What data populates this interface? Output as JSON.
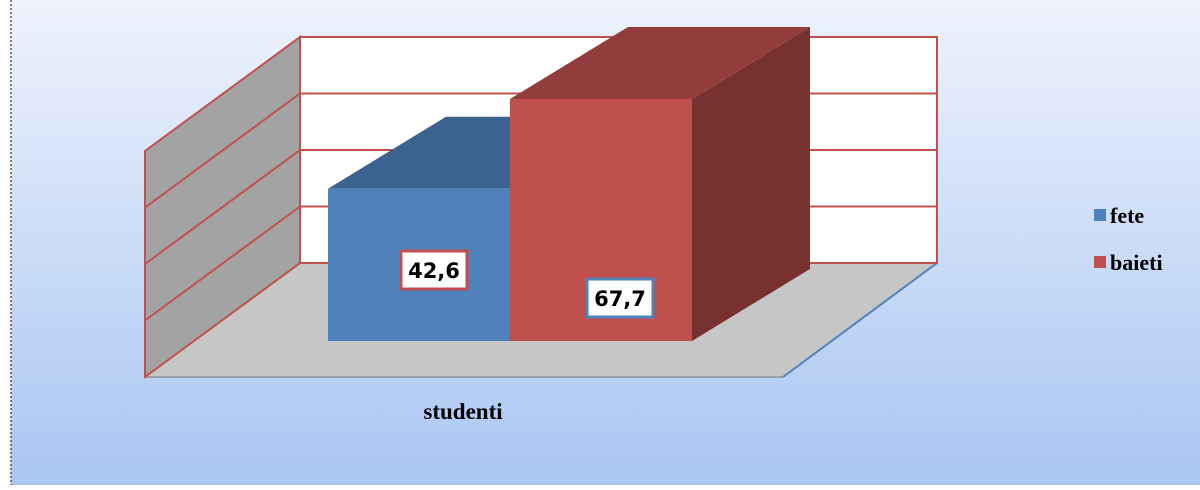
{
  "chart_data": {
    "type": "bar",
    "categories": [
      "studenti"
    ],
    "series": [
      {
        "name": "fete",
        "values": [
          42.6
        ],
        "label": "42,6",
        "color": "#4f81bd"
      },
      {
        "name": "baieti",
        "values": [
          67.7
        ],
        "label": "67,7",
        "color": "#c0504d"
      }
    ],
    "ylim": [
      0,
      80
    ],
    "grid": true,
    "legend": "right",
    "style": "3d-column"
  }
}
